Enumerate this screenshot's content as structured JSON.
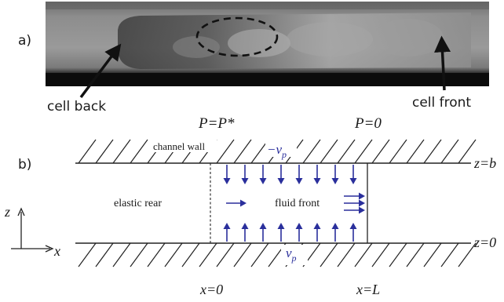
{
  "panel_a": {
    "label": "a)",
    "annotations": {
      "cell_back": "cell back",
      "cell_front": "cell front"
    }
  },
  "panel_b": {
    "label": "b)",
    "pressure_left": "P=P*",
    "pressure_right": "P=0",
    "channel_wall": "channel wall",
    "velocity_top": "−v",
    "velocity_bottom": "v",
    "velocity_subscript": "p",
    "elastic_rear": "elastic rear",
    "fluid_front": "fluid front",
    "z_top": "z=b",
    "z_bottom": "z=0",
    "x_left": "x=0",
    "x_right": "x=L",
    "axis_z": "z",
    "axis_x": "x"
  },
  "colors": {
    "arrow_blue": "#2a2f9c",
    "ink": "#1a1a1a"
  }
}
